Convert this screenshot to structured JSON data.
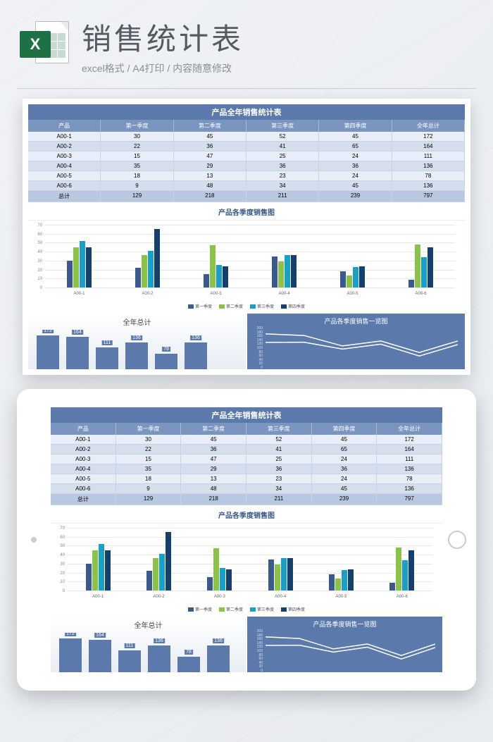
{
  "header": {
    "icon_letter": "X",
    "title": "销售统计表",
    "subtitle": "excel格式 / A4打印 / 内容随意修改"
  },
  "table": {
    "title": "产品全年销售统计表",
    "columns": [
      "产品",
      "第一季度",
      "第二季度",
      "第三季度",
      "第四季度",
      "全年总计"
    ],
    "rows": [
      [
        "A00-1",
        "30",
        "45",
        "52",
        "45",
        "172"
      ],
      [
        "A00-2",
        "22",
        "36",
        "41",
        "65",
        "164"
      ],
      [
        "A00-3",
        "15",
        "47",
        "25",
        "24",
        "111"
      ],
      [
        "A00-4",
        "35",
        "29",
        "36",
        "36",
        "136"
      ],
      [
        "A00-5",
        "18",
        "13",
        "23",
        "24",
        "78"
      ],
      [
        "A00-6",
        "9",
        "48",
        "34",
        "45",
        "136"
      ]
    ],
    "total_row": [
      "总计",
      "129",
      "218",
      "211",
      "239",
      "797"
    ],
    "header_bg": "#7b95c1",
    "title_bg": "#5b79ab",
    "row_alt_colors": [
      "#e8eef7",
      "#d4deed"
    ],
    "total_bg": "#b8c8e0"
  },
  "bar_chart": {
    "type": "grouped-bar",
    "title": "产品各季度销售图",
    "categories": [
      "A00-1",
      "A00-2",
      "A00-3",
      "A00-4",
      "A00-5",
      "A00-6"
    ],
    "series": [
      {
        "name": "第一季度",
        "color": "#3a5a8a",
        "values": [
          30,
          22,
          15,
          35,
          18,
          9
        ]
      },
      {
        "name": "第二季度",
        "color": "#8bc34a",
        "values": [
          45,
          36,
          47,
          29,
          13,
          48
        ]
      },
      {
        "name": "第三季度",
        "color": "#1ba0c4",
        "values": [
          52,
          41,
          25,
          36,
          23,
          34
        ]
      },
      {
        "name": "第四季度",
        "color": "#14406b",
        "values": [
          45,
          65,
          24,
          36,
          24,
          45
        ]
      }
    ],
    "ylim": [
      0,
      70
    ],
    "yticks": [
      0,
      10,
      20,
      30,
      40,
      50,
      60,
      70
    ],
    "grid_color": "#e8e8e8",
    "background": "#ffffff",
    "title_color": "#3a5a8a",
    "label_fontsize": 6
  },
  "total_chart": {
    "type": "bar",
    "title": "全年总计",
    "values": [
      172,
      164,
      111,
      136,
      78,
      136
    ],
    "labels": [
      "172",
      "164",
      "111",
      "136",
      "78",
      "136"
    ],
    "bar_color": "#5b79ab",
    "ymax": 200,
    "visible_count": 4
  },
  "line_chart": {
    "type": "line",
    "title": "产品各季度销售一览图",
    "background": "#5b79ab",
    "line_color": "#ffffff",
    "yticks": [
      0,
      20,
      40,
      60,
      80,
      100,
      120,
      140,
      160,
      180,
      200
    ],
    "ymax": 200,
    "series_points": [
      [
        172,
        164,
        111,
        136,
        78,
        136
      ],
      [
        129,
        130,
        95,
        120,
        60,
        118
      ]
    ]
  }
}
